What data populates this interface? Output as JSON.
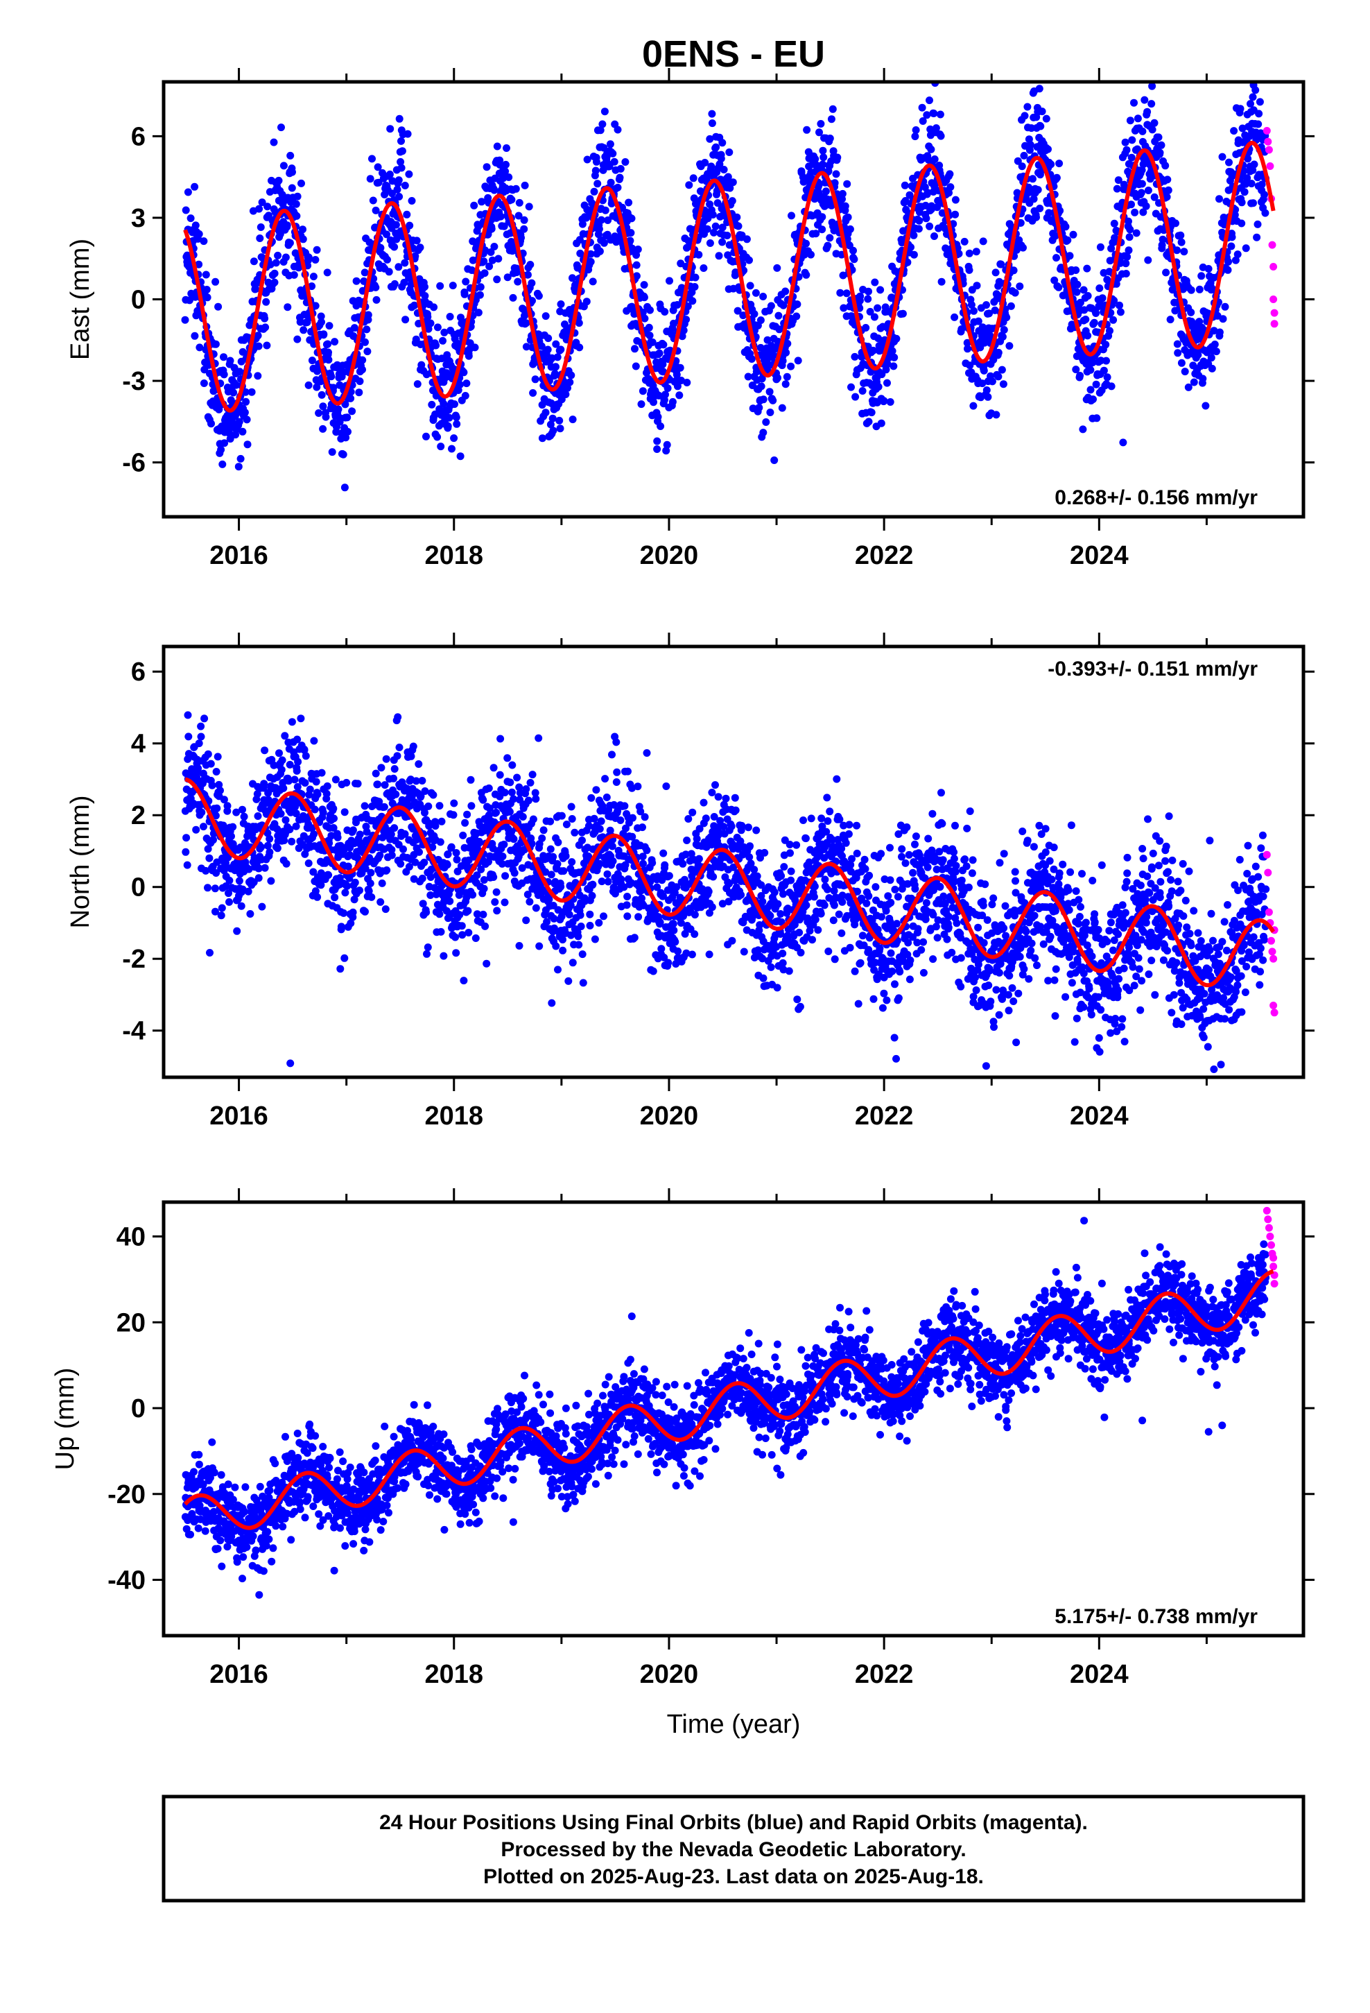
{
  "title": "0ENS - EU",
  "colors": {
    "final": "#0000ff",
    "rapid": "#ff00ff",
    "model": "#ff0000",
    "frame": "#000000"
  },
  "chart_data": [
    {
      "type": "scatter",
      "ylabel": "East (mm)",
      "xlim": [
        2015.3,
        2025.9
      ],
      "ylim": [
        -8,
        8
      ],
      "yticks": [
        -6,
        -3,
        0,
        3,
        6
      ],
      "xticks": [
        2016,
        2018,
        2020,
        2022,
        2024
      ],
      "rate": "0.268+/- 0.156 mm/yr",
      "rate_position": "bottom-right",
      "model": {
        "start": 2015.5,
        "end": 2025.62,
        "offset": -0.6,
        "trend": 0.268,
        "amp_start": 3.6,
        "amp_end": 3.7,
        "period_years": 1.0,
        "peak_phase": 0.42,
        "semi_amp": 0.0
      },
      "scatter_sd": 1.2,
      "series": [
        {
          "name": "Final Orbits",
          "color": "#0000ff",
          "x_range": [
            2015.5,
            2025.55
          ],
          "count": 3300
        },
        {
          "name": "Rapid Orbits",
          "color": "#ff00ff",
          "x": [
            2025.56,
            2025.57,
            2025.58,
            2025.59,
            2025.6,
            2025.61,
            2025.62,
            2025.62,
            2025.63,
            2025.63
          ],
          "y": [
            6.2,
            5.8,
            5.5,
            4.9,
            3.7,
            2.0,
            1.2,
            0.0,
            -0.5,
            -0.9
          ]
        }
      ]
    },
    {
      "type": "scatter",
      "ylabel": "North (mm)",
      "xlim": [
        2015.3,
        2025.9
      ],
      "ylim": [
        -5.3,
        6.7
      ],
      "yticks": [
        -4,
        -2,
        0,
        2,
        4,
        6
      ],
      "xticks": [
        2016,
        2018,
        2020,
        2022,
        2024
      ],
      "rate": "-0.393+/- 0.151 mm/yr",
      "rate_position": "top-right",
      "model": {
        "start": 2015.5,
        "end": 2025.62,
        "offset": 2.0,
        "trend": -0.393,
        "amp_start": 1.0,
        "amp_end": 1.0,
        "period_years": 1.0,
        "peak_phase": 0.5,
        "semi_amp": 0.0
      },
      "scatter_sd": 0.95,
      "series": [
        {
          "name": "Final Orbits",
          "color": "#0000ff",
          "x_range": [
            2015.5,
            2025.55
          ],
          "count": 3300
        },
        {
          "name": "Rapid Orbits",
          "color": "#ff00ff",
          "x": [
            2025.56,
            2025.57,
            2025.58,
            2025.59,
            2025.6,
            2025.61,
            2025.62,
            2025.62,
            2025.63,
            2025.63
          ],
          "y": [
            0.9,
            0.4,
            -0.7,
            -1.0,
            -1.5,
            -1.8,
            -2.0,
            -3.3,
            -3.5,
            -1.2
          ]
        }
      ]
    },
    {
      "type": "scatter",
      "ylabel": "Up (mm)",
      "xlim": [
        2015.3,
        2025.9
      ],
      "ylim": [
        -53,
        48
      ],
      "yticks": [
        -40,
        -20,
        0,
        20,
        40
      ],
      "xticks": [
        2016,
        2018,
        2020,
        2022,
        2024
      ],
      "xlabel": "Time (year)",
      "rate": "5.175+/- 0.738 mm/yr",
      "rate_position": "bottom-right",
      "model": {
        "start": 2015.5,
        "end": 2025.62,
        "offset": -26.0,
        "trend": 5.175,
        "amp_start": 5.0,
        "amp_end": 5.5,
        "period_years": 1.0,
        "peak_phase": 0.62,
        "semi_amp": 0.0
      },
      "scatter_sd": 4.5,
      "series": [
        {
          "name": "Final Orbits",
          "color": "#0000ff",
          "x_range": [
            2015.5,
            2025.55
          ],
          "count": 3300
        },
        {
          "name": "Rapid Orbits",
          "color": "#ff00ff",
          "x": [
            2025.56,
            2025.57,
            2025.58,
            2025.59,
            2025.6,
            2025.61,
            2025.62,
            2025.62,
            2025.63,
            2025.63
          ],
          "y": [
            46,
            44,
            42,
            40,
            38,
            36,
            35,
            33,
            31,
            29
          ]
        }
      ]
    }
  ],
  "footer": {
    "line1": "24 Hour Positions Using Final Orbits (blue) and Rapid Orbits (magenta).",
    "line2": "Processed by the Nevada Geodetic Laboratory.",
    "line3": "Plotted on 2025-Aug-23. Last data on 2025-Aug-18."
  }
}
